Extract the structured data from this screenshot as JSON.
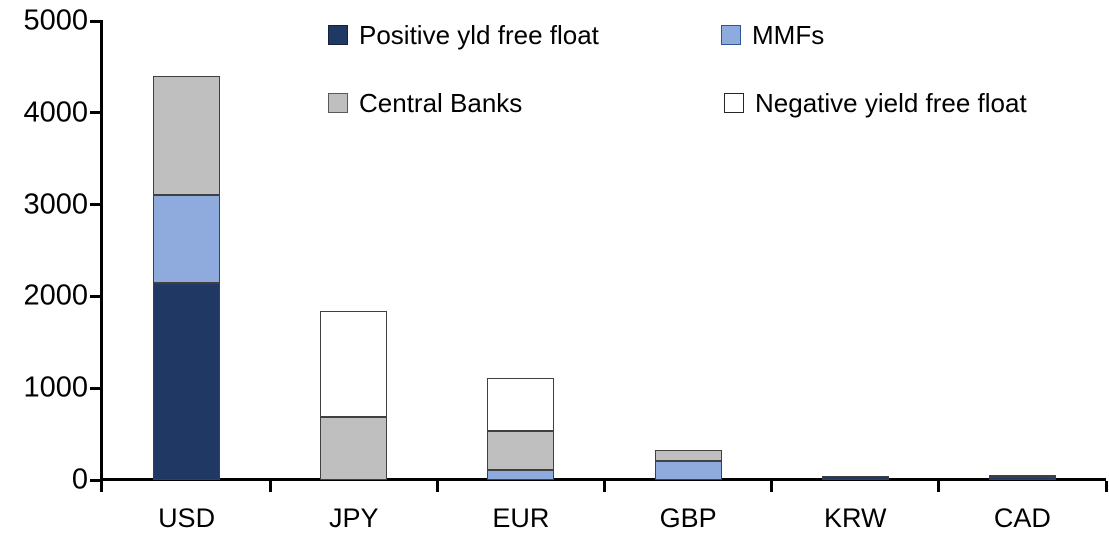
{
  "chart_data": {
    "type": "bar",
    "stacked": true,
    "title": "",
    "xlabel": "",
    "ylabel": "",
    "categories": [
      "USD",
      "JPY",
      "EUR",
      "GBP",
      "KRW",
      "CAD"
    ],
    "series": [
      {
        "name": "Positive yld free float",
        "color": "#1F3864",
        "marker_border": "#17213C",
        "values": [
          2150,
          0,
          0,
          0,
          40,
          35
        ]
      },
      {
        "name": "MMFs",
        "color": "#8FAADC",
        "marker_border": "#2E5597",
        "values": [
          950,
          0,
          105,
          210,
          0,
          0
        ]
      },
      {
        "name": "Central Banks",
        "color": "#BFBFBF",
        "marker_border": "#595959",
        "values": [
          1300,
          690,
          425,
          115,
          0,
          25
        ]
      },
      {
        "name": "Negative yield free float",
        "color": "#FFFFFF",
        "marker_border": "#262626",
        "values": [
          0,
          1150,
          580,
          0,
          0,
          0
        ]
      }
    ],
    "totals": {
      "USD": 4400,
      "JPY": 1840,
      "EUR": 1110,
      "GBP": 325,
      "KRW": 40,
      "CAD": 60
    },
    "ylim": [
      0,
      5000
    ],
    "yticks": [
      0,
      1000,
      2000,
      3000,
      4000,
      5000
    ],
    "grid": false,
    "legend_position": "top",
    "legend_layout": "two-columns-two-rows",
    "axis_color": "#000000",
    "segment_border_color": "#404040",
    "background_color": "#FFFFFF"
  }
}
